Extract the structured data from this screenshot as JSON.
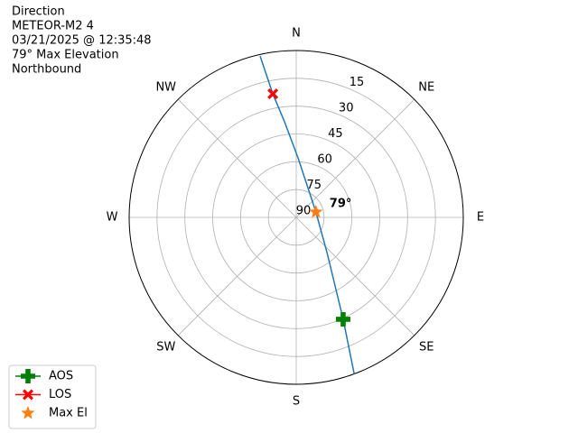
{
  "chart_data": {
    "type": "polar",
    "text_lines": [
      "Direction",
      "METEOR-M2 4",
      "03/21/2025 @ 12:35:48",
      "79° Max Elevation",
      "Northbound"
    ],
    "rlim": [
      90,
      0
    ],
    "rticks": [
      15,
      30,
      45,
      60,
      75,
      90
    ],
    "thetaticks": [
      {
        "value": 0,
        "label": "N"
      },
      {
        "value": 45,
        "label": "NE"
      },
      {
        "value": 90,
        "label": "E"
      },
      {
        "value": 135,
        "label": "SE"
      },
      {
        "value": 180,
        "label": "S"
      },
      {
        "value": 225,
        "label": "SW"
      },
      {
        "value": 270,
        "label": "W"
      },
      {
        "value": 315,
        "label": "NW"
      }
    ],
    "grid": true,
    "legend": "lower left",
    "track": {
      "color": "#1f77b4",
      "theta": [
        159.7,
        155.3,
        138.9,
        74.7,
        1.7,
        353,
        349.3,
        347.4
      ],
      "values": [
        0,
        29.5,
        64.8,
        79,
        57.9,
        38,
        22.2,
        0.8
      ]
    },
    "series": [
      {
        "name": "AOS",
        "color": "#008000",
        "marker": "plus",
        "theta": [
          155.3
        ],
        "values": [
          29.5
        ]
      },
      {
        "name": "LOS",
        "color": "#ff0000",
        "marker": "x",
        "theta": [
          349.3
        ],
        "values": [
          22.2
        ]
      },
      {
        "name": "Max El",
        "color": "#ff7f0e",
        "marker": "star",
        "theta": [
          74.7
        ],
        "values": [
          79
        ],
        "value_labels": [
          "79°"
        ]
      }
    ]
  }
}
